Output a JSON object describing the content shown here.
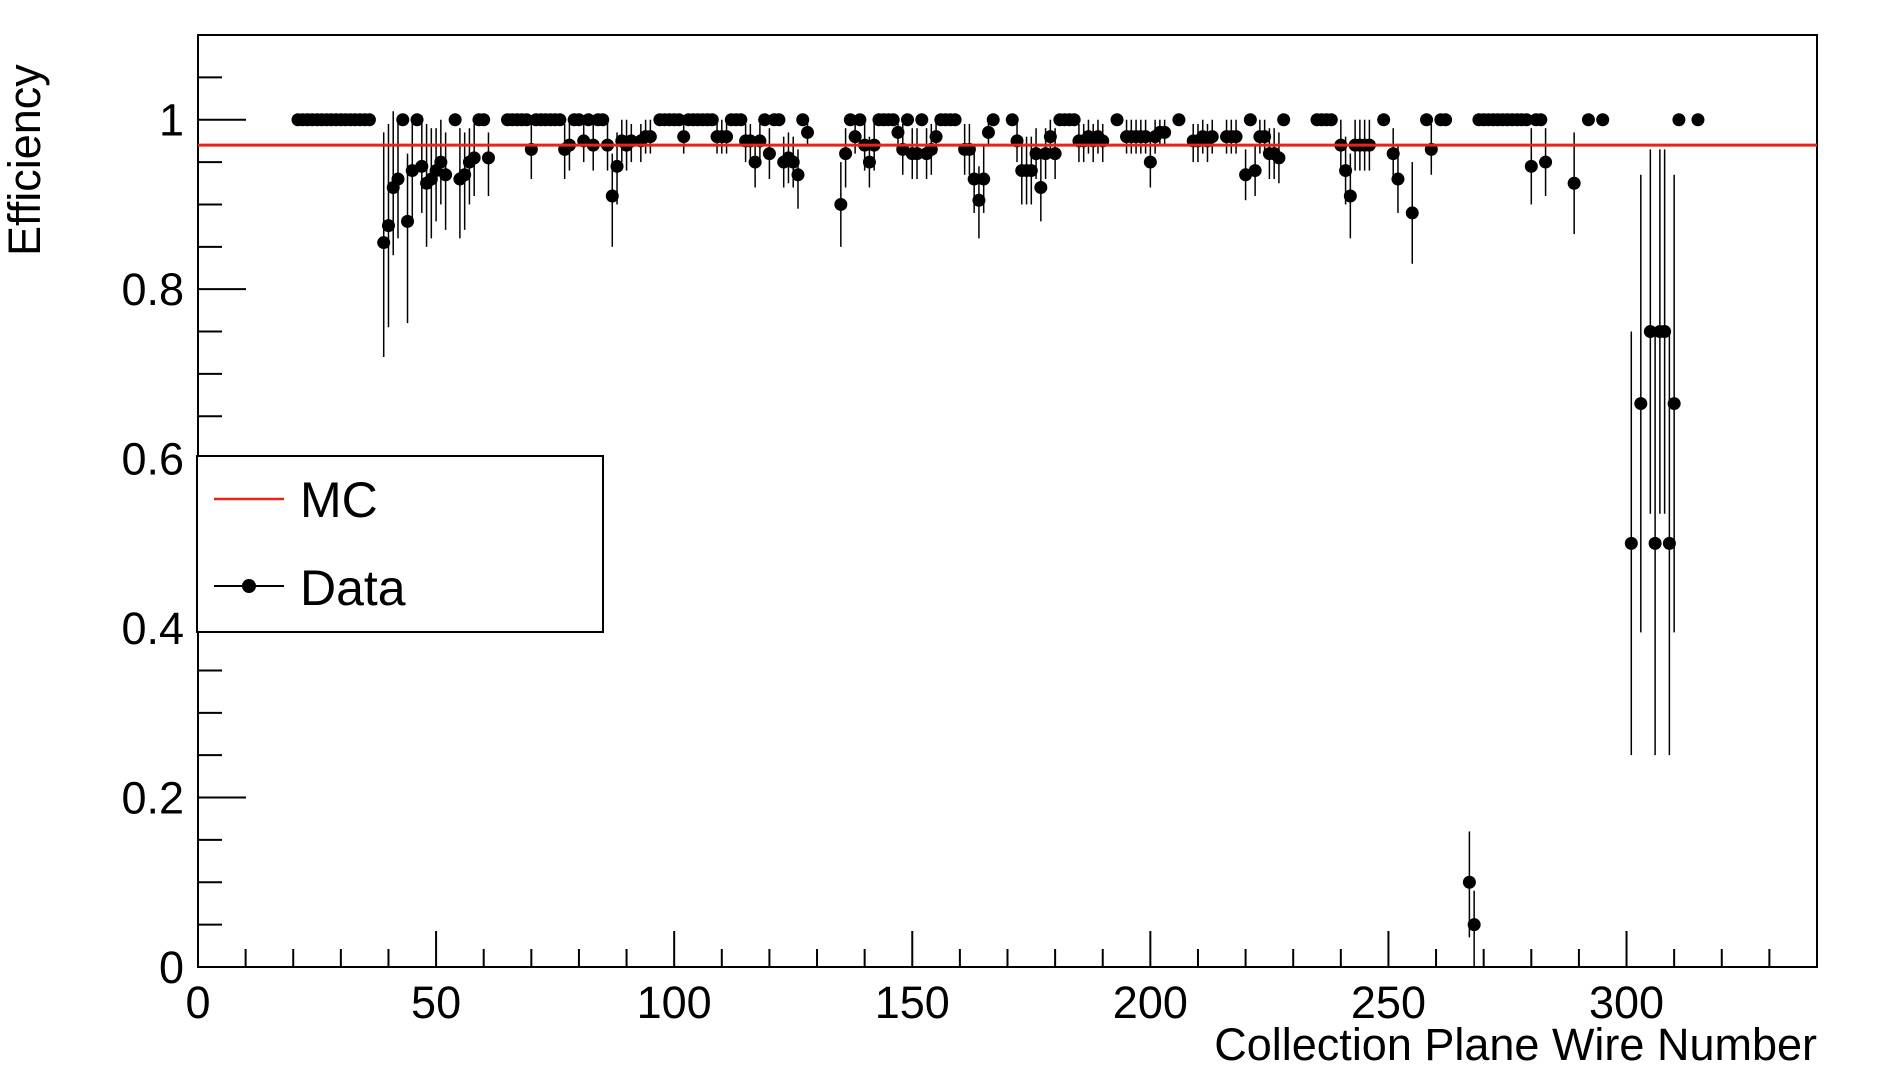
{
  "chart_data": {
    "type": "scatter",
    "title": "",
    "xlabel": "Collection Plane Wire Number",
    "ylabel": "Efficiency",
    "xlim": [
      0,
      340
    ],
    "ylim": [
      0,
      1.1
    ],
    "x_ticks": [
      "0",
      "50",
      "100",
      "150",
      "200",
      "250",
      "300"
    ],
    "y_ticks": [
      "0",
      "0.2",
      "0.4",
      "0.6",
      "0.8",
      "1"
    ],
    "grid": false,
    "legend_position": "middle-left",
    "colors": {
      "mc": "#e8231c",
      "data": "#000000"
    },
    "mc": {
      "name": "MC",
      "value": 0.97
    },
    "data_series": {
      "name": "Data",
      "points": [
        [
          21,
          1,
          0,
          0
        ],
        [
          22,
          1,
          0,
          0
        ],
        [
          23,
          1,
          0,
          0
        ],
        [
          24,
          1,
          0,
          0
        ],
        [
          25,
          1,
          0,
          0
        ],
        [
          26,
          1,
          0,
          0
        ],
        [
          27,
          1,
          0,
          0
        ],
        [
          28,
          1,
          0,
          0
        ],
        [
          29,
          1,
          0,
          0
        ],
        [
          30,
          1,
          0,
          0
        ],
        [
          31,
          1,
          0,
          0
        ],
        [
          32,
          1,
          0,
          0
        ],
        [
          33,
          1,
          0,
          0
        ],
        [
          34,
          1,
          0,
          0
        ],
        [
          35,
          1,
          0,
          0
        ],
        [
          36,
          1,
          0,
          0
        ],
        [
          39,
          0.855,
          0.135,
          0.13
        ],
        [
          40,
          0.875,
          0.12,
          0.12
        ],
        [
          41,
          0.92,
          0.08,
          0.09
        ],
        [
          42,
          0.93,
          0.07,
          0.07
        ],
        [
          43,
          1,
          0,
          0
        ],
        [
          44,
          0.88,
          0.12,
          0.08
        ],
        [
          45,
          0.94,
          0.06,
          0.06
        ],
        [
          46,
          1,
          0,
          0
        ],
        [
          47,
          0.945,
          0.055,
          0.06
        ],
        [
          48,
          0.925,
          0.075,
          0.07
        ],
        [
          49,
          0.93,
          0.07,
          0.06
        ],
        [
          50,
          0.94,
          0.06,
          0.05
        ],
        [
          51,
          0.95,
          0.05,
          0.05
        ],
        [
          52,
          0.935,
          0.065,
          0.05
        ],
        [
          54,
          1,
          0,
          0
        ],
        [
          55,
          0.93,
          0.07,
          0.06
        ],
        [
          56,
          0.935,
          0.065,
          0.05
        ],
        [
          57,
          0.95,
          0.05,
          0.04
        ],
        [
          58,
          0.955,
          0.045,
          0.04
        ],
        [
          59,
          1,
          0,
          0
        ],
        [
          60,
          1,
          0,
          0
        ],
        [
          61,
          0.955,
          0.045,
          0.03
        ],
        [
          65,
          1,
          0,
          0
        ],
        [
          66,
          1,
          0,
          0
        ],
        [
          67,
          1,
          0,
          0
        ],
        [
          68,
          1,
          0,
          0
        ],
        [
          69,
          1,
          0,
          0
        ],
        [
          70,
          0.965,
          0.035,
          0.03
        ],
        [
          71,
          1,
          0,
          0
        ],
        [
          72,
          1,
          0,
          0
        ],
        [
          73,
          1,
          0,
          0
        ],
        [
          74,
          1,
          0,
          0
        ],
        [
          75,
          1,
          0,
          0
        ],
        [
          76,
          1,
          0,
          0
        ],
        [
          77,
          0.965,
          0.035,
          0.03
        ],
        [
          78,
          0.97,
          0.03,
          0.03
        ],
        [
          79,
          1,
          0,
          0
        ],
        [
          80,
          1,
          0,
          0
        ],
        [
          81,
          0.975,
          0.025,
          0.025
        ],
        [
          82,
          1,
          0,
          0
        ],
        [
          83,
          0.97,
          0.03,
          0.03
        ],
        [
          84,
          1,
          0,
          0
        ],
        [
          85,
          1,
          0,
          0
        ],
        [
          86,
          0.97,
          0.03,
          0.03
        ],
        [
          87,
          0.91,
          0.06,
          0.05
        ],
        [
          88,
          0.945,
          0.045,
          0.04
        ],
        [
          89,
          0.975,
          0.025,
          0.025
        ],
        [
          90,
          0.97,
          0.03,
          0.03
        ],
        [
          91,
          0.975,
          0.025,
          0.02
        ],
        [
          93,
          0.975,
          0.025,
          0.02
        ],
        [
          94,
          0.98,
          0.02,
          0.02
        ],
        [
          95,
          0.98,
          0.02,
          0.02
        ],
        [
          97,
          1,
          0,
          0
        ],
        [
          98,
          1,
          0,
          0
        ],
        [
          99,
          1,
          0,
          0
        ],
        [
          100,
          1,
          0,
          0
        ],
        [
          101,
          1,
          0,
          0
        ],
        [
          102,
          0.98,
          0.02,
          0.02
        ],
        [
          103,
          1,
          0,
          0
        ],
        [
          104,
          1,
          0,
          0
        ],
        [
          105,
          1,
          0,
          0
        ],
        [
          106,
          1,
          0,
          0
        ],
        [
          107,
          1,
          0,
          0
        ],
        [
          108,
          1,
          0,
          0
        ],
        [
          109,
          0.98,
          0.02,
          0.02
        ],
        [
          110,
          0.98,
          0.02,
          0.02
        ],
        [
          111,
          0.98,
          0.02,
          0.02
        ],
        [
          112,
          1,
          0,
          0
        ],
        [
          113,
          1,
          0,
          0
        ],
        [
          114,
          1,
          0,
          0
        ],
        [
          115,
          0.975,
          0.025,
          0.02
        ],
        [
          116,
          0.975,
          0.025,
          0.02
        ],
        [
          117,
          0.95,
          0.03,
          0.03
        ],
        [
          118,
          0.975,
          0.025,
          0.02
        ],
        [
          119,
          1,
          0,
          0
        ],
        [
          120,
          0.96,
          0.03,
          0.03
        ],
        [
          121,
          1,
          0,
          0
        ],
        [
          122,
          1,
          0,
          0
        ],
        [
          123,
          0.95,
          0.03,
          0.03
        ],
        [
          124,
          0.955,
          0.03,
          0.03
        ],
        [
          125,
          0.95,
          0.03,
          0.03
        ],
        [
          126,
          0.935,
          0.04,
          0.03
        ],
        [
          127,
          1,
          0,
          0
        ],
        [
          128,
          0.985,
          0.015,
          0.015
        ],
        [
          135,
          0.9,
          0.05,
          0.05
        ],
        [
          136,
          0.96,
          0.04,
          0.03
        ],
        [
          137,
          1,
          0,
          0
        ],
        [
          138,
          0.98,
          0.02,
          0.02
        ],
        [
          139,
          1,
          0,
          0
        ],
        [
          140,
          0.97,
          0.03,
          0.03
        ],
        [
          141,
          0.95,
          0.03,
          0.03
        ],
        [
          142,
          0.97,
          0.03,
          0.03
        ],
        [
          143,
          1,
          0,
          0
        ],
        [
          144,
          1,
          0,
          0
        ],
        [
          145,
          1,
          0,
          0
        ],
        [
          146,
          1,
          0,
          0
        ],
        [
          147,
          0.985,
          0.015,
          0.015
        ],
        [
          148,
          0.965,
          0.03,
          0.03
        ],
        [
          149,
          1,
          0,
          0
        ],
        [
          150,
          0.96,
          0.03,
          0.03
        ],
        [
          151,
          0.96,
          0.03,
          0.03
        ],
        [
          152,
          1,
          0,
          0
        ],
        [
          153,
          0.96,
          0.03,
          0.03
        ],
        [
          154,
          0.965,
          0.03,
          0.03
        ],
        [
          155,
          0.98,
          0.02,
          0.02
        ],
        [
          156,
          1,
          0,
          0
        ],
        [
          157,
          1,
          0,
          0
        ],
        [
          158,
          1,
          0,
          0
        ],
        [
          159,
          1,
          0,
          0
        ],
        [
          161,
          0.965,
          0.03,
          0.03
        ],
        [
          162,
          0.965,
          0.03,
          0.03
        ],
        [
          163,
          0.93,
          0.04,
          0.04
        ],
        [
          164,
          0.905,
          0.045,
          0.04
        ],
        [
          165,
          0.93,
          0.04,
          0.04
        ],
        [
          166,
          0.985,
          0.015,
          0.015
        ],
        [
          167,
          1,
          0,
          0
        ],
        [
          171,
          1,
          0,
          0
        ],
        [
          172,
          0.975,
          0.025,
          0.025
        ],
        [
          173,
          0.94,
          0.04,
          0.04
        ],
        [
          174,
          0.94,
          0.04,
          0.04
        ],
        [
          175,
          0.94,
          0.04,
          0.04
        ],
        [
          176,
          0.96,
          0.03,
          0.03
        ],
        [
          177,
          0.92,
          0.04,
          0.04
        ],
        [
          178,
          0.96,
          0.03,
          0.03
        ],
        [
          179,
          0.98,
          0.02,
          0.02
        ],
        [
          180,
          0.96,
          0.03,
          0.03
        ],
        [
          181,
          1,
          0,
          0
        ],
        [
          182,
          1,
          0,
          0
        ],
        [
          183,
          1,
          0,
          0
        ],
        [
          184,
          1,
          0,
          0
        ],
        [
          185,
          0.975,
          0.025,
          0.02
        ],
        [
          186,
          0.975,
          0.025,
          0.02
        ],
        [
          187,
          0.98,
          0.02,
          0.02
        ],
        [
          188,
          0.975,
          0.025,
          0.02
        ],
        [
          189,
          0.98,
          0.02,
          0.02
        ],
        [
          190,
          0.975,
          0.025,
          0.02
        ],
        [
          193,
          1,
          0,
          0
        ],
        [
          195,
          0.98,
          0.02,
          0.02
        ],
        [
          196,
          0.98,
          0.02,
          0.02
        ],
        [
          197,
          0.98,
          0.02,
          0.02
        ],
        [
          198,
          0.98,
          0.02,
          0.02
        ],
        [
          199,
          0.98,
          0.02,
          0.02
        ],
        [
          200,
          0.95,
          0.03,
          0.03
        ],
        [
          201,
          0.98,
          0.02,
          0.02
        ],
        [
          202,
          0.985,
          0.015,
          0.015
        ],
        [
          203,
          0.985,
          0.015,
          0.015
        ],
        [
          206,
          1,
          0,
          0
        ],
        [
          209,
          0.975,
          0.025,
          0.02
        ],
        [
          210,
          0.975,
          0.025,
          0.02
        ],
        [
          211,
          0.98,
          0.02,
          0.02
        ],
        [
          212,
          0.975,
          0.025,
          0.02
        ],
        [
          213,
          0.98,
          0.02,
          0.02
        ],
        [
          216,
          0.98,
          0.02,
          0.02
        ],
        [
          217,
          0.98,
          0.02,
          0.02
        ],
        [
          218,
          0.98,
          0.02,
          0.02
        ],
        [
          220,
          0.935,
          0.03,
          0.03
        ],
        [
          221,
          1,
          0,
          0
        ],
        [
          222,
          0.94,
          0.03,
          0.03
        ],
        [
          223,
          0.98,
          0.02,
          0.02
        ],
        [
          224,
          0.98,
          0.02,
          0.02
        ],
        [
          225,
          0.96,
          0.03,
          0.03
        ],
        [
          226,
          0.96,
          0.03,
          0.03
        ],
        [
          227,
          0.955,
          0.03,
          0.03
        ],
        [
          228,
          1,
          0,
          0
        ],
        [
          235,
          1,
          0,
          0
        ],
        [
          236,
          1,
          0,
          0
        ],
        [
          237,
          1,
          0,
          0
        ],
        [
          238,
          1,
          0,
          0
        ],
        [
          240,
          0.97,
          0.03,
          0.03
        ],
        [
          241,
          0.94,
          0.04,
          0.04
        ],
        [
          242,
          0.91,
          0.05,
          0.05
        ],
        [
          243,
          0.97,
          0.03,
          0.03
        ],
        [
          244,
          0.97,
          0.03,
          0.03
        ],
        [
          245,
          0.97,
          0.03,
          0.03
        ],
        [
          246,
          0.97,
          0.03,
          0.03
        ],
        [
          249,
          1,
          0,
          0
        ],
        [
          251,
          0.96,
          0.03,
          0.03
        ],
        [
          252,
          0.93,
          0.04,
          0.04
        ],
        [
          255,
          0.89,
          0.06,
          0.06
        ],
        [
          258,
          1,
          0,
          0
        ],
        [
          259,
          0.965,
          0.03,
          0.03
        ],
        [
          261,
          1,
          0,
          0
        ],
        [
          262,
          1,
          0,
          0
        ],
        [
          267,
          0.1,
          0.065,
          0.06
        ],
        [
          268,
          0.05,
          0.05,
          0.04
        ],
        [
          269,
          1,
          0,
          0
        ],
        [
          270,
          1,
          0,
          0
        ],
        [
          271,
          1,
          0,
          0
        ],
        [
          272,
          1,
          0,
          0
        ],
        [
          273,
          1,
          0,
          0
        ],
        [
          274,
          1,
          0,
          0
        ],
        [
          275,
          1,
          0,
          0
        ],
        [
          276,
          1,
          0,
          0
        ],
        [
          277,
          1,
          0,
          0
        ],
        [
          278,
          1,
          0,
          0
        ],
        [
          279,
          1,
          0,
          0
        ],
        [
          280,
          0.945,
          0.045,
          0.045
        ],
        [
          281,
          1,
          0,
          0
        ],
        [
          282,
          1,
          0,
          0
        ],
        [
          283,
          0.95,
          0.04,
          0.04
        ],
        [
          289,
          0.925,
          0.06,
          0.06
        ],
        [
          292,
          1,
          0,
          0
        ],
        [
          295,
          1,
          0,
          0
        ],
        [
          301,
          0.5,
          0.25,
          0.25
        ],
        [
          303,
          0.665,
          0.27,
          0.27
        ],
        [
          305,
          0.75,
          0.215,
          0.215
        ],
        [
          306,
          0.5,
          0.25,
          0.25
        ],
        [
          307,
          0.75,
          0.215,
          0.215
        ],
        [
          308,
          0.75,
          0.215,
          0.215
        ],
        [
          309,
          0.5,
          0.25,
          0.25
        ],
        [
          310,
          0.665,
          0.27,
          0.27
        ],
        [
          311,
          1,
          0,
          0
        ],
        [
          315,
          1,
          0,
          0
        ]
      ]
    }
  }
}
